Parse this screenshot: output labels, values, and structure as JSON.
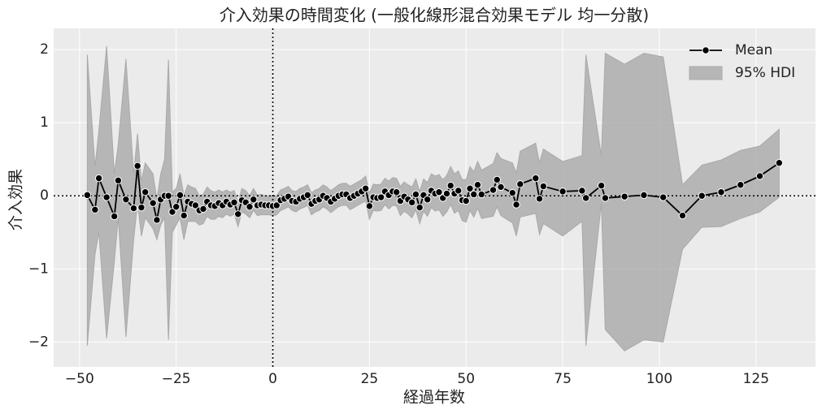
{
  "chart_data": {
    "type": "line_band",
    "title": "介入効果の時間変化 (一般化線形混合効果モデル 均一分散)",
    "x_label": "経過年数",
    "y_label": "介入効果",
    "x": [
      -48,
      -46,
      -45,
      -43,
      -41,
      -40,
      -38,
      -36,
      -35,
      -34,
      -33,
      -31,
      -30,
      -29,
      -28,
      -27,
      -26,
      -25,
      -24,
      -23,
      -22,
      -21,
      -20,
      -19,
      -18,
      -17,
      -16,
      -15,
      -14,
      -13,
      -12,
      -11,
      -10,
      -9,
      -8,
      -7,
      -6,
      -5,
      -4,
      -3,
      -2,
      -1,
      0,
      1,
      2,
      3,
      4,
      5,
      6,
      7,
      8,
      9,
      10,
      11,
      12,
      13,
      14,
      15,
      16,
      17,
      18,
      19,
      20,
      21,
      22,
      23,
      24,
      25,
      26,
      27,
      28,
      29,
      30,
      31,
      32,
      33,
      34,
      35,
      36,
      37,
      38,
      39,
      40,
      41,
      42,
      43,
      44,
      45,
      46,
      47,
      48,
      49,
      50,
      51,
      52,
      53,
      54,
      57,
      58,
      59,
      62,
      63,
      64,
      68,
      69,
      70,
      75,
      80,
      81,
      85,
      86,
      91,
      96,
      101,
      106,
      111,
      116,
      121,
      126,
      131
    ],
    "series": [
      {
        "name": "Mean",
        "color": "#000000",
        "values": [
          0.01,
          -0.19,
          0.24,
          -0.02,
          -0.28,
          0.21,
          -0.05,
          -0.17,
          0.41,
          -0.16,
          0.05,
          -0.1,
          -0.33,
          -0.05,
          0.0,
          0.0,
          -0.22,
          -0.15,
          0.01,
          -0.27,
          -0.08,
          -0.11,
          -0.13,
          -0.2,
          -0.18,
          -0.08,
          -0.13,
          -0.14,
          -0.1,
          -0.13,
          -0.08,
          -0.12,
          -0.09,
          -0.25,
          -0.06,
          -0.09,
          -0.15,
          -0.05,
          -0.13,
          -0.12,
          -0.13,
          -0.13,
          -0.14,
          -0.13,
          -0.06,
          -0.04,
          -0.01,
          -0.07,
          -0.08,
          -0.04,
          -0.02,
          0.01,
          -0.11,
          -0.07,
          -0.05,
          0.0,
          -0.03,
          -0.08,
          -0.04,
          0.0,
          0.02,
          0.02,
          -0.03,
          0.0,
          0.03,
          0.06,
          0.1,
          -0.14,
          -0.02,
          -0.03,
          -0.02,
          0.06,
          0.01,
          0.06,
          0.05,
          -0.07,
          -0.01,
          -0.05,
          -0.09,
          0.02,
          -0.16,
          0.01,
          -0.05,
          0.07,
          0.03,
          0.05,
          -0.03,
          0.03,
          0.14,
          0.03,
          0.07,
          -0.06,
          -0.07,
          0.1,
          0.02,
          0.15,
          0.02,
          0.08,
          0.22,
          0.12,
          0.04,
          -0.12,
          0.16,
          0.24,
          -0.04,
          0.13,
          0.06,
          0.07,
          -0.03,
          0.14,
          -0.03,
          -0.01,
          0.01,
          -0.02,
          -0.27,
          0.0,
          0.05,
          0.15,
          0.27,
          0.45
        ]
      }
    ],
    "band": {
      "name": "95% HDI",
      "color": "#a9a9a9",
      "lower": [
        -2.05,
        -0.8,
        -0.5,
        -1.95,
        -0.9,
        -0.3,
        -1.93,
        -0.6,
        -0.1,
        -0.55,
        -0.3,
        -0.45,
        -0.6,
        -0.4,
        -0.3,
        -1.97,
        -0.5,
        -0.4,
        -0.3,
        -0.6,
        -0.35,
        -0.35,
        -0.35,
        -0.4,
        -0.38,
        -0.28,
        -0.32,
        -0.32,
        -0.28,
        -0.3,
        -0.25,
        -0.28,
        -0.25,
        -0.42,
        -0.22,
        -0.25,
        -0.3,
        -0.2,
        -0.27,
        -0.26,
        -0.26,
        -0.26,
        -0.27,
        -0.26,
        -0.2,
        -0.18,
        -0.15,
        -0.2,
        -0.22,
        -0.18,
        -0.16,
        -0.13,
        -0.26,
        -0.22,
        -0.2,
        -0.15,
        -0.18,
        -0.23,
        -0.19,
        -0.15,
        -0.13,
        -0.13,
        -0.19,
        -0.16,
        -0.13,
        -0.1,
        -0.07,
        -0.32,
        -0.2,
        -0.21,
        -0.2,
        -0.12,
        -0.18,
        -0.13,
        -0.14,
        -0.27,
        -0.21,
        -0.25,
        -0.3,
        -0.19,
        -0.38,
        -0.21,
        -0.28,
        -0.16,
        -0.21,
        -0.19,
        -0.28,
        -0.22,
        -0.12,
        -0.24,
        -0.2,
        -0.34,
        -0.36,
        -0.2,
        -0.29,
        -0.17,
        -0.31,
        -0.28,
        -0.15,
        -0.27,
        -0.37,
        -0.55,
        -0.29,
        -0.24,
        -0.53,
        -0.38,
        -0.55,
        -0.35,
        -2.05,
        -0.1,
        -1.83,
        -2.12,
        -1.97,
        -2.0,
        -0.73,
        -0.43,
        -0.42,
        -0.31,
        -0.22,
        -0.02
      ],
      "upper": [
        1.93,
        0.4,
        0.9,
        2.05,
        0.3,
        0.7,
        1.87,
        0.3,
        0.85,
        0.2,
        0.45,
        0.3,
        -0.05,
        0.3,
        0.5,
        1.86,
        0.05,
        0.1,
        0.3,
        0.0,
        0.15,
        0.12,
        0.1,
        0.0,
        0.02,
        0.12,
        0.07,
        0.05,
        0.08,
        0.05,
        0.08,
        0.05,
        0.07,
        -0.08,
        0.1,
        0.07,
        0.0,
        0.1,
        0.01,
        0.02,
        0.0,
        0.0,
        0.0,
        0.0,
        0.08,
        0.1,
        0.13,
        0.07,
        0.06,
        0.1,
        0.12,
        0.15,
        0.04,
        0.08,
        0.1,
        0.15,
        0.12,
        0.07,
        0.11,
        0.15,
        0.17,
        0.17,
        0.13,
        0.16,
        0.19,
        0.22,
        0.27,
        0.04,
        0.16,
        0.15,
        0.16,
        0.24,
        0.2,
        0.25,
        0.24,
        0.13,
        0.19,
        0.15,
        0.12,
        0.23,
        0.06,
        0.23,
        0.18,
        0.3,
        0.27,
        0.29,
        0.22,
        0.28,
        0.4,
        0.3,
        0.34,
        0.22,
        0.22,
        0.4,
        0.33,
        0.47,
        0.35,
        0.44,
        0.59,
        0.51,
        0.45,
        0.31,
        0.61,
        0.72,
        0.45,
        0.64,
        0.47,
        0.55,
        1.93,
        0.55,
        1.95,
        1.8,
        1.95,
        1.9,
        0.15,
        0.42,
        0.49,
        0.62,
        0.68,
        0.91
      ]
    },
    "xlim": [
      -56.7,
      140.4
    ],
    "ylim": [
      -2.34,
      2.29
    ],
    "xticks": [
      {
        "value": -50,
        "label": "−50"
      },
      {
        "value": -25,
        "label": "−25"
      },
      0,
      25,
      50,
      75,
      100,
      125
    ],
    "yticks": [
      {
        "value": -2,
        "label": "−2"
      },
      {
        "value": -1,
        "label": "−1"
      },
      0,
      1,
      2
    ],
    "ref_lines": {
      "x": 0,
      "y": 0
    },
    "grid": true,
    "legend": "upper right"
  }
}
